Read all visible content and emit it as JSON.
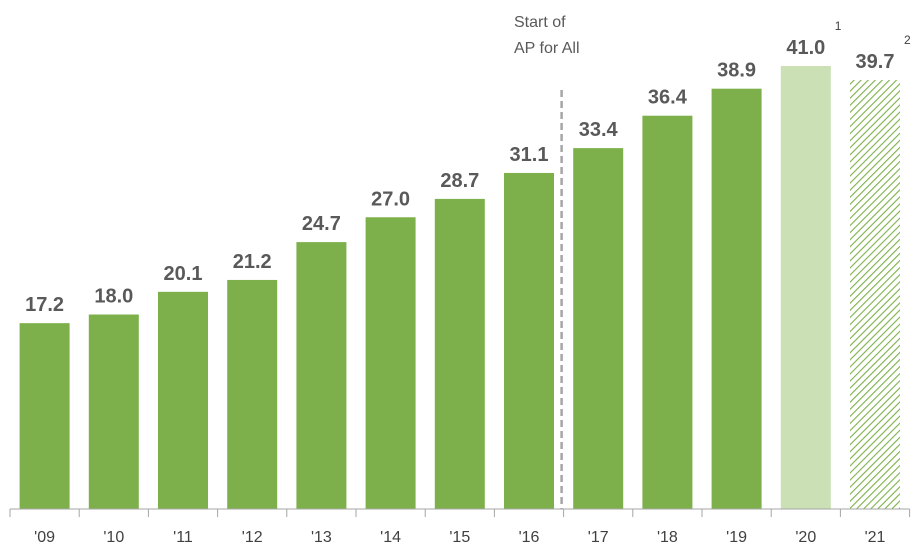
{
  "chart_data": {
    "type": "bar",
    "categories": [
      "'09",
      "'10",
      "'11",
      "'12",
      "'13",
      "'14",
      "'15",
      "'16",
      "'17",
      "'18",
      "'19",
      "'20",
      "'21"
    ],
    "values": [
      17.2,
      18.0,
      20.1,
      21.2,
      24.7,
      27.0,
      28.7,
      31.1,
      33.4,
      36.4,
      38.9,
      41.0,
      39.7
    ],
    "value_labels": [
      "17.2",
      "18.0",
      "20.1",
      "21.2",
      "24.7",
      "27.0",
      "28.7",
      "31.1",
      "33.4",
      "36.4",
      "38.9",
      "41.0",
      "39.7"
    ],
    "footnote_markers": {
      "11": "1",
      "12": "2"
    },
    "bar_styles": [
      "solid",
      "solid",
      "solid",
      "solid",
      "solid",
      "solid",
      "solid",
      "solid",
      "solid",
      "solid",
      "solid",
      "light",
      "hatched"
    ],
    "annotation": {
      "line1": "Start of",
      "line2": "AP for All",
      "between_categories": [
        "'16",
        "'17"
      ]
    },
    "title": "",
    "xlabel": "",
    "ylabel": "",
    "ylim": [
      0,
      41.0
    ],
    "grid": false,
    "legend": "none",
    "colors": {
      "solid": "#7db04a",
      "light": "#cbe0b4",
      "hatch": "#7db04a",
      "divider": "#a6a6a6",
      "axis": "#a6a6a6"
    }
  }
}
